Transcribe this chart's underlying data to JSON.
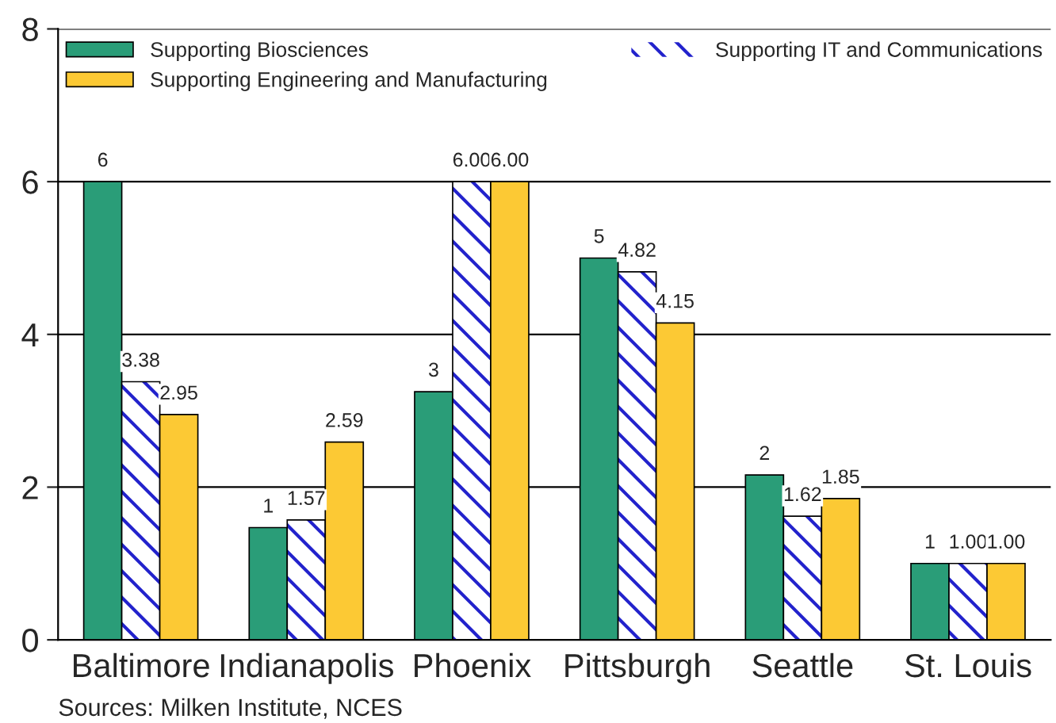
{
  "chart_data": {
    "type": "bar",
    "categories": [
      "Baltimore",
      "Indianapolis",
      "Phoenix",
      "Pittsburgh",
      "Seattle",
      "St. Louis"
    ],
    "series": [
      {
        "name": "Supporting Biosciences",
        "color": "#2a9d78",
        "values": [
          6,
          1.47,
          3.25,
          5,
          2.16,
          1
        ],
        "value_labels": [
          "6",
          "1",
          "3",
          "5",
          "2",
          "1"
        ]
      },
      {
        "name": "Supporting IT and Communications",
        "color": "#2222cc",
        "values": [
          3.38,
          1.57,
          6.0,
          4.82,
          1.62,
          1.0
        ],
        "value_labels": [
          "3.38",
          "1.57",
          "6.00",
          "4.82",
          "1.62",
          "1.00"
        ]
      },
      {
        "name": "Supporting Engineering and Manufacturing",
        "color": "#fcc934",
        "values": [
          2.95,
          2.59,
          6.0,
          4.15,
          1.85,
          1.0
        ],
        "value_labels": [
          "2.95",
          "2.59",
          "6.00",
          "4.15",
          "1.85",
          "1.00"
        ]
      }
    ],
    "ylim": [
      0,
      8
    ],
    "yticks": [
      0,
      2,
      4,
      6,
      8
    ],
    "grid": "y",
    "legend": "top",
    "annotations": [
      "Sources: Milken Institute, NCES"
    ]
  }
}
